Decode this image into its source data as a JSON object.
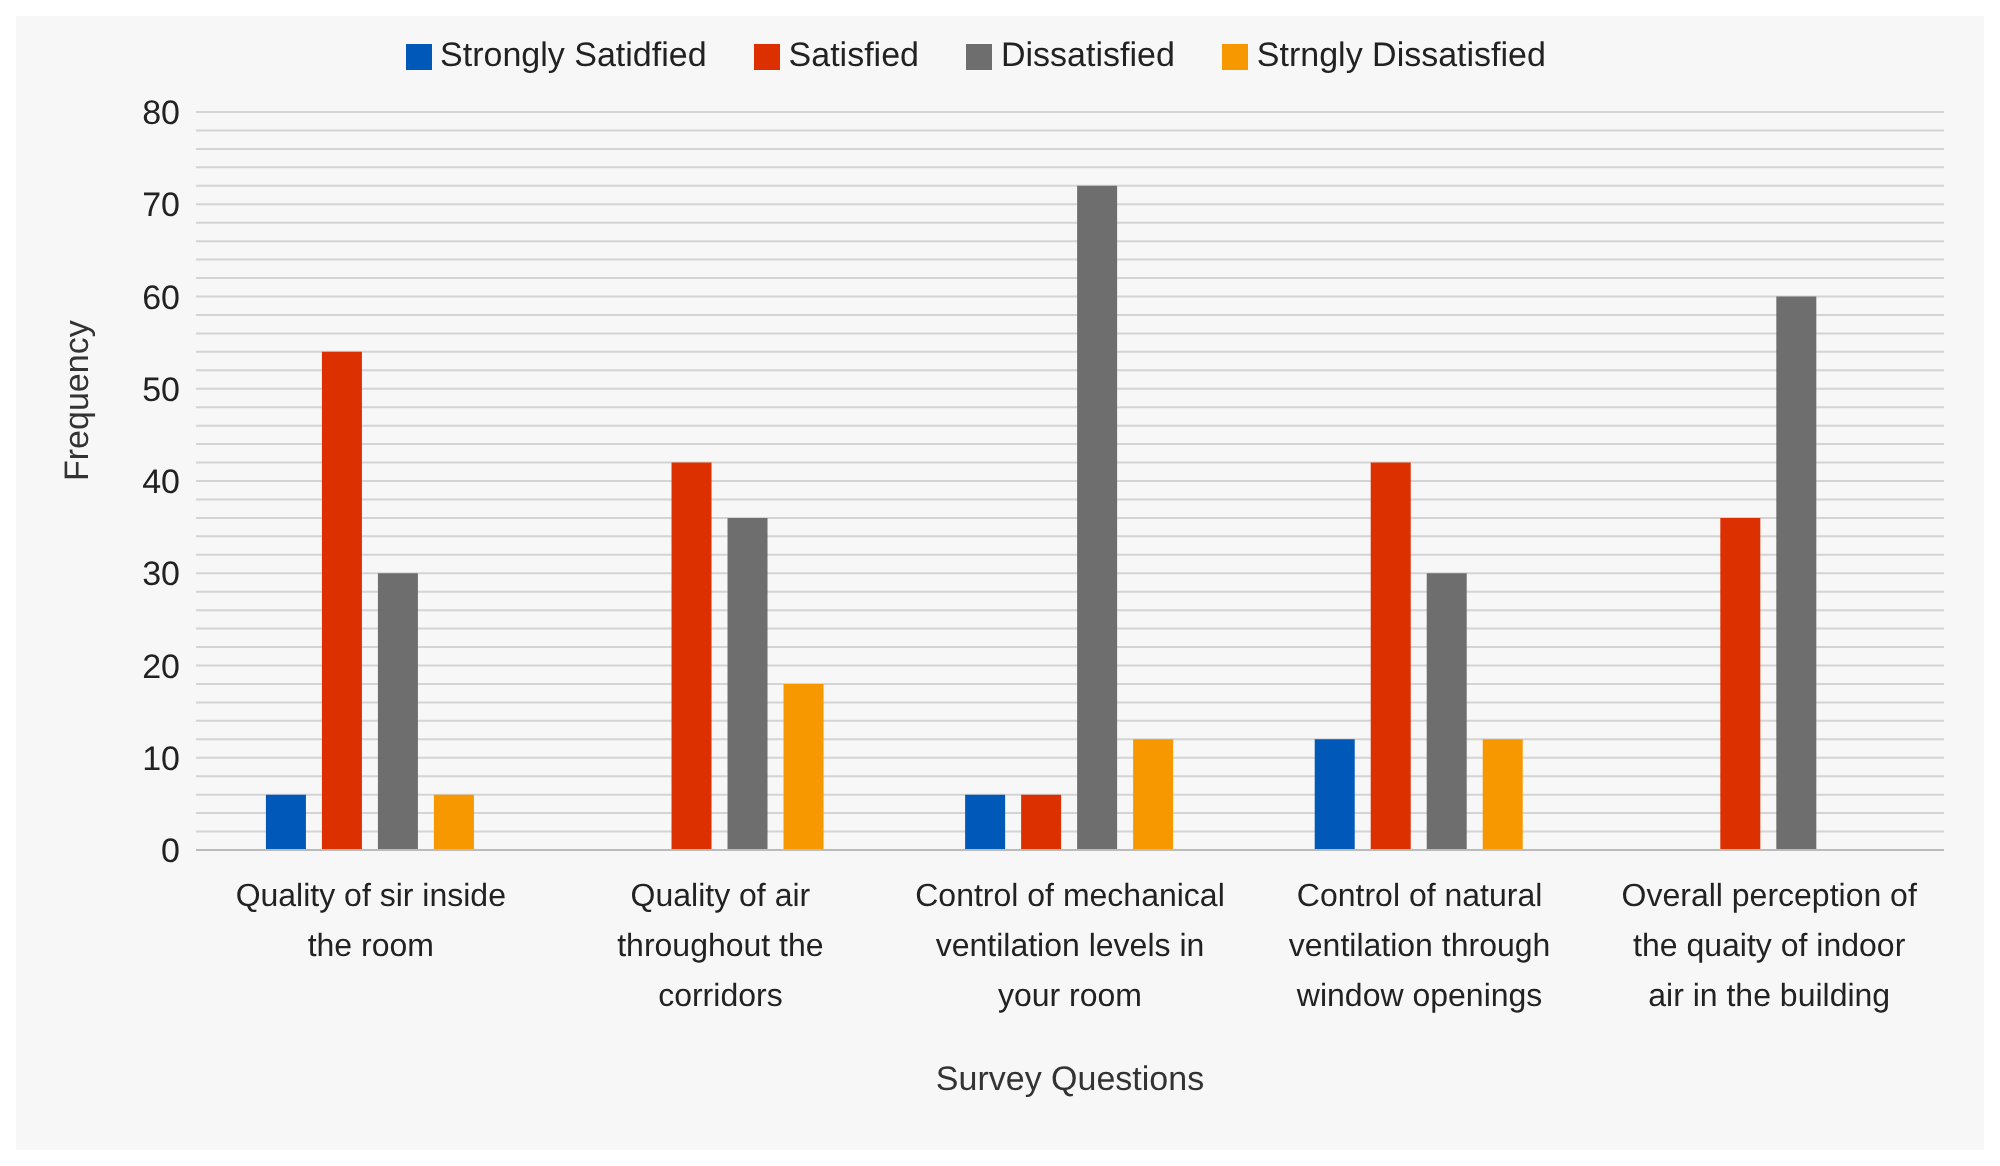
{
  "chart_data": {
    "type": "bar",
    "xlabel": "Survey Questions",
    "ylabel": "Frequency",
    "categories": [
      "Quality of sir inside the room",
      "Quality of air throughout the corridors",
      "Control of mechanical ventilation levels in your room",
      "Control of natural ventilation through window openings",
      "Overall perception of the quaity of indoor air in the building"
    ],
    "series": [
      {
        "name": "Strongly Satidfied",
        "color": "#0058b8",
        "values": [
          6,
          0,
          6,
          12,
          0
        ]
      },
      {
        "name": "Satisfied",
        "color": "#dc3000",
        "values": [
          54,
          42,
          6,
          42,
          36
        ]
      },
      {
        "name": "Dissatisfied",
        "color": "#6e6e6e",
        "values": [
          30,
          36,
          72,
          30,
          60
        ]
      },
      {
        "name": "Strngly Dissatisfied",
        "color": "#f89800",
        "values": [
          6,
          18,
          12,
          12,
          0
        ]
      }
    ],
    "ylim": [
      0,
      80
    ],
    "yticks": [
      0,
      {
        "value": 2,
        "label": null
      },
      {
        "value": 4,
        "label": null
      },
      {
        "value": 6,
        "label": null
      },
      {
        "value": 8,
        "label": null
      },
      10,
      {
        "value": 12,
        "label": null
      },
      {
        "value": 14,
        "label": null
      },
      {
        "value": 16,
        "label": null
      },
      {
        "value": 18,
        "label": null
      },
      20,
      {
        "value": 22,
        "label": null
      },
      {
        "value": 24,
        "label": null
      },
      {
        "value": 26,
        "label": null
      },
      {
        "value": 28,
        "label": null
      },
      30,
      {
        "value": 32,
        "label": null
      },
      {
        "value": 34,
        "label": null
      },
      {
        "value": 36,
        "label": null
      },
      {
        "value": 38,
        "label": null
      },
      40,
      {
        "value": 42,
        "label": null
      },
      {
        "value": 44,
        "label": null
      },
      {
        "value": 46,
        "label": null
      },
      {
        "value": 48,
        "label": null
      },
      50,
      {
        "value": 52,
        "label": null
      },
      {
        "value": 54,
        "label": null
      },
      {
        "value": 56,
        "label": null
      },
      {
        "value": 58,
        "label": null
      },
      60,
      {
        "value": 62,
        "label": null
      },
      {
        "value": 64,
        "label": null
      },
      {
        "value": 66,
        "label": null
      },
      {
        "value": 68,
        "label": null
      },
      70,
      {
        "value": 72,
        "label": null
      },
      {
        "value": 74,
        "label": null
      },
      {
        "value": 76,
        "label": null
      },
      {
        "value": 78,
        "label": null
      },
      80
    ],
    "grid": "y",
    "legend": "top"
  }
}
